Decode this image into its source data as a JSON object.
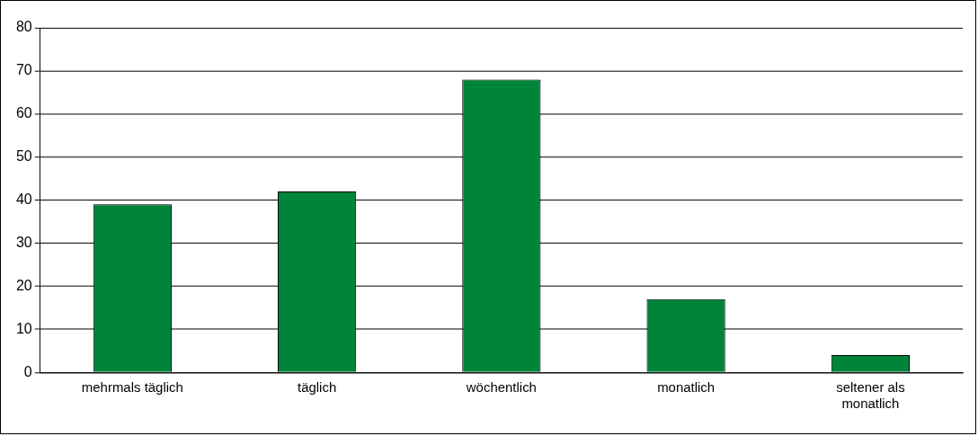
{
  "chart_data": {
    "type": "bar",
    "categories": [
      "mehrmals täglich",
      "täglich",
      "wöchentlich",
      "monatlich",
      "seltener als monatlich"
    ],
    "values": [
      39,
      42,
      68,
      17,
      4
    ],
    "color": "#00843a",
    "ylim": [
      0,
      80
    ],
    "yticks": [
      0,
      10,
      20,
      30,
      40,
      50,
      60,
      70,
      80
    ],
    "grid": "y",
    "legend": false
  }
}
